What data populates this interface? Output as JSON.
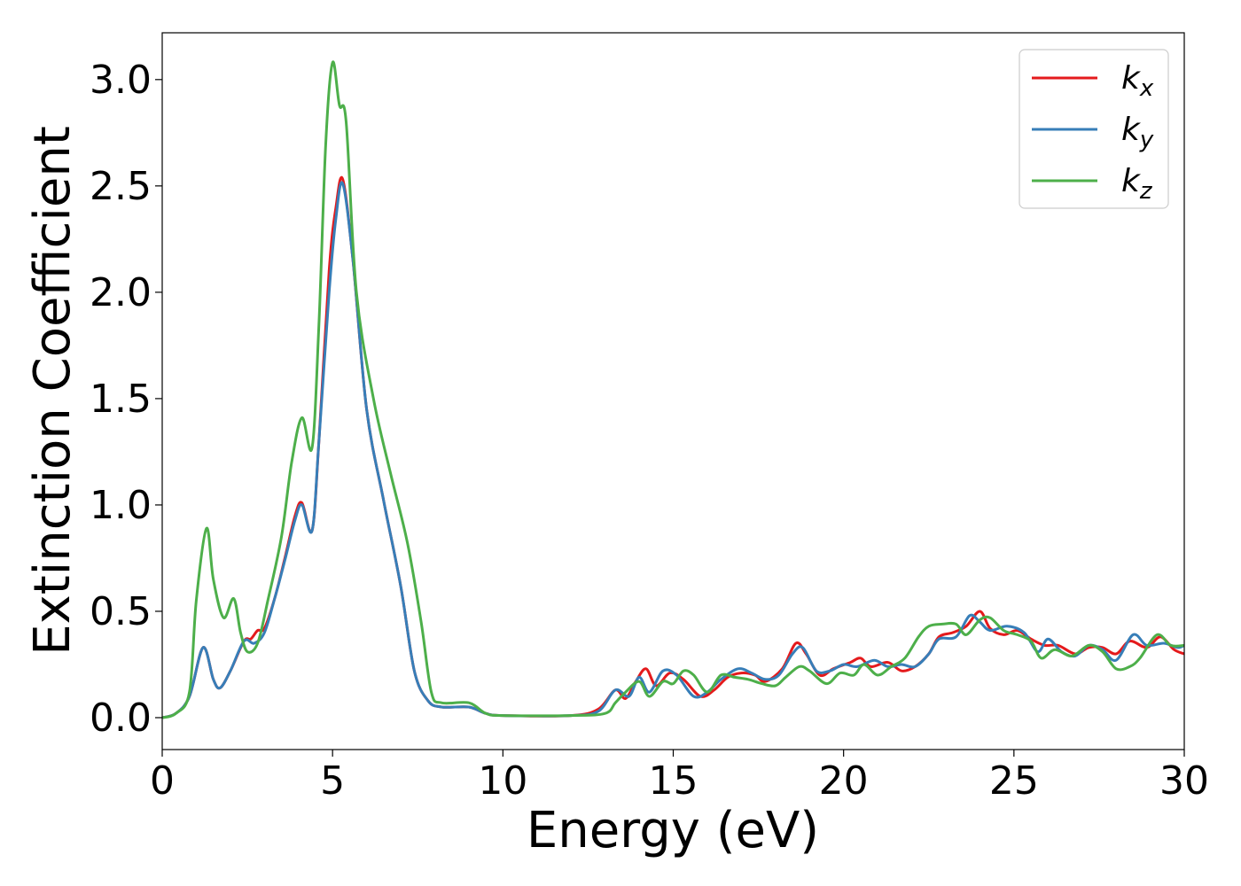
{
  "chart_data": {
    "type": "line",
    "title": "",
    "xlabel": "Energy (eV)",
    "ylabel": "Extinction Coefficient",
    "xlim": [
      0,
      30
    ],
    "ylim": [
      -0.15,
      3.22
    ],
    "xticks": [
      0,
      5,
      10,
      15,
      20,
      25,
      30
    ],
    "xtick_labels": [
      "0",
      "5",
      "10",
      "15",
      "20",
      "25",
      "30"
    ],
    "yticks": [
      0.0,
      0.5,
      1.0,
      1.5,
      2.0,
      2.5,
      3.0
    ],
    "ytick_labels": [
      "0.0",
      "0.5",
      "1.0",
      "1.5",
      "2.0",
      "2.5",
      "3.0"
    ],
    "grid": false,
    "legend_position": "top-right",
    "series": [
      {
        "name": "k_x",
        "label_main": "k",
        "label_sub": "x",
        "color": "#e41a1c",
        "points": [
          [
            0,
            0.0
          ],
          [
            0.4,
            0.02
          ],
          [
            0.8,
            0.1
          ],
          [
            1.2,
            0.33
          ],
          [
            1.5,
            0.18
          ],
          [
            1.7,
            0.14
          ],
          [
            2.0,
            0.22
          ],
          [
            2.4,
            0.36
          ],
          [
            2.6,
            0.37
          ],
          [
            2.8,
            0.41
          ],
          [
            3.0,
            0.42
          ],
          [
            3.3,
            0.56
          ],
          [
            3.6,
            0.75
          ],
          [
            3.9,
            0.95
          ],
          [
            4.1,
            1.01
          ],
          [
            4.4,
            0.88
          ],
          [
            4.6,
            1.3
          ],
          [
            4.9,
            2.1
          ],
          [
            5.1,
            2.4
          ],
          [
            5.3,
            2.53
          ],
          [
            5.6,
            2.15
          ],
          [
            6.0,
            1.45
          ],
          [
            6.5,
            1.02
          ],
          [
            7.0,
            0.62
          ],
          [
            7.4,
            0.22
          ],
          [
            7.8,
            0.08
          ],
          [
            8.2,
            0.05
          ],
          [
            9.0,
            0.05
          ],
          [
            9.5,
            0.02
          ],
          [
            10,
            0.01
          ],
          [
            12,
            0.01
          ],
          [
            12.8,
            0.04
          ],
          [
            13.3,
            0.13
          ],
          [
            13.6,
            0.09
          ],
          [
            13.9,
            0.17
          ],
          [
            14.2,
            0.23
          ],
          [
            14.5,
            0.15
          ],
          [
            14.9,
            0.21
          ],
          [
            15.3,
            0.18
          ],
          [
            15.8,
            0.1
          ],
          [
            16.2,
            0.13
          ],
          [
            16.6,
            0.19
          ],
          [
            17.0,
            0.21
          ],
          [
            17.4,
            0.2
          ],
          [
            17.7,
            0.17
          ],
          [
            18.2,
            0.23
          ],
          [
            18.6,
            0.35
          ],
          [
            18.9,
            0.3
          ],
          [
            19.3,
            0.2
          ],
          [
            19.7,
            0.23
          ],
          [
            20.2,
            0.26
          ],
          [
            20.5,
            0.28
          ],
          [
            20.8,
            0.24
          ],
          [
            21.3,
            0.26
          ],
          [
            21.7,
            0.22
          ],
          [
            22.1,
            0.24
          ],
          [
            22.5,
            0.3
          ],
          [
            22.8,
            0.38
          ],
          [
            23.2,
            0.4
          ],
          [
            23.6,
            0.43
          ],
          [
            24.0,
            0.5
          ],
          [
            24.3,
            0.42
          ],
          [
            24.7,
            0.39
          ],
          [
            25.1,
            0.41
          ],
          [
            25.5,
            0.37
          ],
          [
            25.9,
            0.34
          ],
          [
            26.3,
            0.34
          ],
          [
            26.8,
            0.3
          ],
          [
            27.2,
            0.33
          ],
          [
            27.6,
            0.33
          ],
          [
            28.0,
            0.3
          ],
          [
            28.4,
            0.36
          ],
          [
            28.9,
            0.33
          ],
          [
            29.3,
            0.38
          ],
          [
            29.7,
            0.32
          ],
          [
            30,
            0.3
          ]
        ]
      },
      {
        "name": "k_y",
        "label_main": "k",
        "label_sub": "y",
        "color": "#377eb8",
        "points": [
          [
            0,
            0.0
          ],
          [
            0.4,
            0.02
          ],
          [
            0.8,
            0.1
          ],
          [
            1.2,
            0.33
          ],
          [
            1.5,
            0.18
          ],
          [
            1.7,
            0.14
          ],
          [
            2.0,
            0.22
          ],
          [
            2.4,
            0.36
          ],
          [
            2.7,
            0.35
          ],
          [
            3.0,
            0.4
          ],
          [
            3.3,
            0.56
          ],
          [
            3.6,
            0.74
          ],
          [
            3.9,
            0.93
          ],
          [
            4.1,
            1.0
          ],
          [
            4.4,
            0.88
          ],
          [
            4.6,
            1.3
          ],
          [
            4.9,
            2.0
          ],
          [
            5.1,
            2.35
          ],
          [
            5.3,
            2.51
          ],
          [
            5.6,
            2.15
          ],
          [
            6.0,
            1.45
          ],
          [
            6.5,
            1.02
          ],
          [
            7.0,
            0.62
          ],
          [
            7.4,
            0.22
          ],
          [
            7.8,
            0.08
          ],
          [
            8.2,
            0.05
          ],
          [
            9.0,
            0.05
          ],
          [
            9.5,
            0.02
          ],
          [
            10,
            0.01
          ],
          [
            12,
            0.01
          ],
          [
            12.8,
            0.03
          ],
          [
            13.3,
            0.13
          ],
          [
            13.7,
            0.1
          ],
          [
            14.0,
            0.19
          ],
          [
            14.3,
            0.12
          ],
          [
            14.7,
            0.22
          ],
          [
            15.1,
            0.2
          ],
          [
            15.6,
            0.1
          ],
          [
            16.0,
            0.12
          ],
          [
            16.4,
            0.18
          ],
          [
            16.9,
            0.23
          ],
          [
            17.3,
            0.21
          ],
          [
            17.7,
            0.18
          ],
          [
            18.1,
            0.2
          ],
          [
            18.5,
            0.3
          ],
          [
            18.8,
            0.33
          ],
          [
            19.2,
            0.22
          ],
          [
            19.6,
            0.22
          ],
          [
            20.0,
            0.25
          ],
          [
            20.4,
            0.24
          ],
          [
            20.9,
            0.27
          ],
          [
            21.3,
            0.24
          ],
          [
            21.7,
            0.25
          ],
          [
            22.1,
            0.24
          ],
          [
            22.5,
            0.3
          ],
          [
            22.8,
            0.37
          ],
          [
            23.3,
            0.38
          ],
          [
            23.7,
            0.48
          ],
          [
            24.0,
            0.45
          ],
          [
            24.3,
            0.41
          ],
          [
            24.8,
            0.43
          ],
          [
            25.3,
            0.4
          ],
          [
            25.7,
            0.31
          ],
          [
            26.0,
            0.37
          ],
          [
            26.4,
            0.31
          ],
          [
            26.8,
            0.29
          ],
          [
            27.2,
            0.34
          ],
          [
            27.6,
            0.32
          ],
          [
            28.0,
            0.27
          ],
          [
            28.5,
            0.39
          ],
          [
            28.9,
            0.34
          ],
          [
            29.4,
            0.35
          ],
          [
            29.8,
            0.33
          ],
          [
            30,
            0.34
          ]
        ]
      },
      {
        "name": "k_z",
        "label_main": "k",
        "label_sub": "z",
        "color": "#4daf4a",
        "points": [
          [
            0,
            0.0
          ],
          [
            0.4,
            0.02
          ],
          [
            0.8,
            0.12
          ],
          [
            1.0,
            0.55
          ],
          [
            1.3,
            0.89
          ],
          [
            1.5,
            0.65
          ],
          [
            1.8,
            0.47
          ],
          [
            2.1,
            0.56
          ],
          [
            2.3,
            0.4
          ],
          [
            2.5,
            0.31
          ],
          [
            2.8,
            0.35
          ],
          [
            3.1,
            0.55
          ],
          [
            3.5,
            0.85
          ],
          [
            3.8,
            1.2
          ],
          [
            4.1,
            1.41
          ],
          [
            4.4,
            1.27
          ],
          [
            4.6,
            1.85
          ],
          [
            4.8,
            2.7
          ],
          [
            5.0,
            3.08
          ],
          [
            5.2,
            2.88
          ],
          [
            5.4,
            2.8
          ],
          [
            5.7,
            2.0
          ],
          [
            6.2,
            1.5
          ],
          [
            6.7,
            1.15
          ],
          [
            7.2,
            0.82
          ],
          [
            7.6,
            0.45
          ],
          [
            7.9,
            0.12
          ],
          [
            8.2,
            0.07
          ],
          [
            9.0,
            0.07
          ],
          [
            9.5,
            0.02
          ],
          [
            10,
            0.01
          ],
          [
            12,
            0.01
          ],
          [
            13.0,
            0.02
          ],
          [
            13.3,
            0.07
          ],
          [
            13.6,
            0.12
          ],
          [
            14.0,
            0.17
          ],
          [
            14.3,
            0.1
          ],
          [
            14.7,
            0.17
          ],
          [
            15.0,
            0.16
          ],
          [
            15.3,
            0.22
          ],
          [
            15.6,
            0.2
          ],
          [
            16.0,
            0.12
          ],
          [
            16.4,
            0.2
          ],
          [
            16.8,
            0.19
          ],
          [
            17.2,
            0.18
          ],
          [
            17.6,
            0.16
          ],
          [
            18.0,
            0.15
          ],
          [
            18.3,
            0.19
          ],
          [
            18.7,
            0.24
          ],
          [
            19.0,
            0.22
          ],
          [
            19.5,
            0.16
          ],
          [
            19.9,
            0.21
          ],
          [
            20.3,
            0.2
          ],
          [
            20.6,
            0.25
          ],
          [
            21.0,
            0.2
          ],
          [
            21.4,
            0.24
          ],
          [
            21.8,
            0.28
          ],
          [
            22.2,
            0.38
          ],
          [
            22.5,
            0.43
          ],
          [
            22.9,
            0.44
          ],
          [
            23.3,
            0.44
          ],
          [
            23.6,
            0.39
          ],
          [
            24.0,
            0.46
          ],
          [
            24.3,
            0.47
          ],
          [
            24.7,
            0.41
          ],
          [
            25.1,
            0.39
          ],
          [
            25.5,
            0.36
          ],
          [
            25.8,
            0.28
          ],
          [
            26.2,
            0.32
          ],
          [
            26.7,
            0.29
          ],
          [
            27.2,
            0.34
          ],
          [
            27.6,
            0.31
          ],
          [
            28.0,
            0.23
          ],
          [
            28.4,
            0.24
          ],
          [
            28.7,
            0.28
          ],
          [
            29.2,
            0.39
          ],
          [
            29.6,
            0.34
          ],
          [
            30,
            0.34
          ]
        ]
      }
    ]
  }
}
